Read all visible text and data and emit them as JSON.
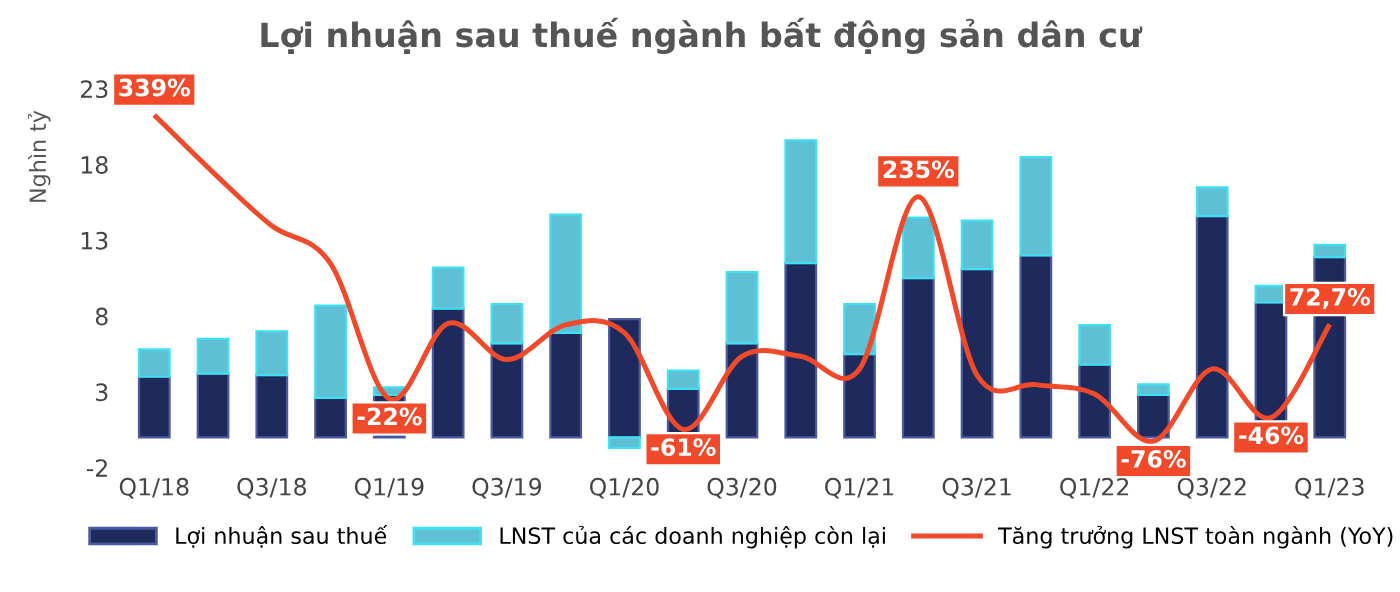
{
  "chart_data": {
    "type": "bar",
    "stacked": true,
    "title": "Lợi nhuận sau thuế ngành bất động sản dân cư",
    "ylabel": "Nghìn tỷ",
    "categories": [
      "Q1/18",
      null,
      "Q3/18",
      null,
      "Q1/19",
      null,
      "Q3/19",
      null,
      "Q1/20",
      null,
      "Q3/20",
      null,
      "Q1/21",
      null,
      "Q3/21",
      null,
      "Q1/22",
      null,
      "Q3/22",
      null,
      "Q1/23"
    ],
    "ylim": [
      -2,
      23
    ],
    "yticks": [
      -2,
      3,
      8,
      13,
      18,
      23
    ],
    "grid": false,
    "legend": "bottom",
    "series": [
      {
        "name": "Lợi nhuận sau thuế",
        "color": "#1f2a5c",
        "values": [
          4.0,
          4.2,
          4.1,
          2.6,
          2.8,
          8.5,
          6.2,
          6.9,
          7.8,
          3.2,
          6.2,
          11.5,
          5.5,
          10.5,
          11.1,
          12.0,
          4.8,
          2.8,
          14.6,
          8.9,
          11.9
        ]
      },
      {
        "name": "LNST của các doanh nghiệp còn lại",
        "color": "#5fbfd4",
        "values": [
          1.8,
          2.3,
          2.9,
          6.1,
          0.5,
          2.7,
          2.6,
          7.8,
          -0.7,
          1.2,
          4.7,
          8.1,
          3.3,
          4.0,
          3.2,
          6.5,
          2.6,
          0.7,
          1.9,
          1.1,
          0.8
        ]
      },
      {
        "name": "Tăng trưởng LNST toàn ngành (YoY)",
        "type": "line",
        "axis": "y2",
        "color": "#f04a2a",
        "marker": "none",
        "line_style": "solid",
        "values": [
          339,
          266,
          198,
          150,
          -22,
          74,
          28,
          72,
          62,
          -61,
          32,
          32,
          16,
          235,
          8,
          -4,
          -16,
          -76,
          16,
          -46,
          72.7
        ],
        "value_labels": [
          "339%",
          null,
          null,
          null,
          "-22%",
          null,
          null,
          null,
          null,
          "-61%",
          null,
          null,
          null,
          "235%",
          null,
          null,
          null,
          "-76%",
          null,
          "-46%",
          "72,7%"
        ]
      }
    ]
  }
}
